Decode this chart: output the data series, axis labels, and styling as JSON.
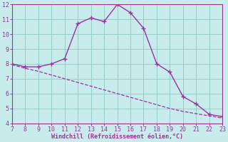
{
  "x": [
    7,
    8,
    9,
    10,
    11,
    12,
    13,
    14,
    15,
    16,
    17,
    18,
    19,
    20,
    21,
    22,
    23
  ],
  "y_curve": [
    8.0,
    7.8,
    7.8,
    8.0,
    8.35,
    10.7,
    11.1,
    10.85,
    12.0,
    11.45,
    10.4,
    8.0,
    7.45,
    5.8,
    5.3,
    4.6,
    4.45
  ],
  "y_line": [
    7.95,
    7.7,
    7.5,
    7.25,
    7.0,
    6.75,
    6.5,
    6.25,
    6.0,
    5.75,
    5.5,
    5.25,
    5.0,
    4.8,
    4.65,
    4.5,
    4.35
  ],
  "line_color": "#993399",
  "bg_color": "#c8ecec",
  "grid_color": "#99cccc",
  "xlabel": "Windchill (Refroidissement éolien,°C)",
  "xlim": [
    7,
    23
  ],
  "ylim": [
    4,
    12
  ],
  "xticks": [
    7,
    8,
    9,
    10,
    11,
    12,
    13,
    14,
    15,
    16,
    17,
    18,
    19,
    20,
    21,
    22,
    23
  ],
  "yticks": [
    4,
    5,
    6,
    7,
    8,
    9,
    10,
    11,
    12
  ]
}
